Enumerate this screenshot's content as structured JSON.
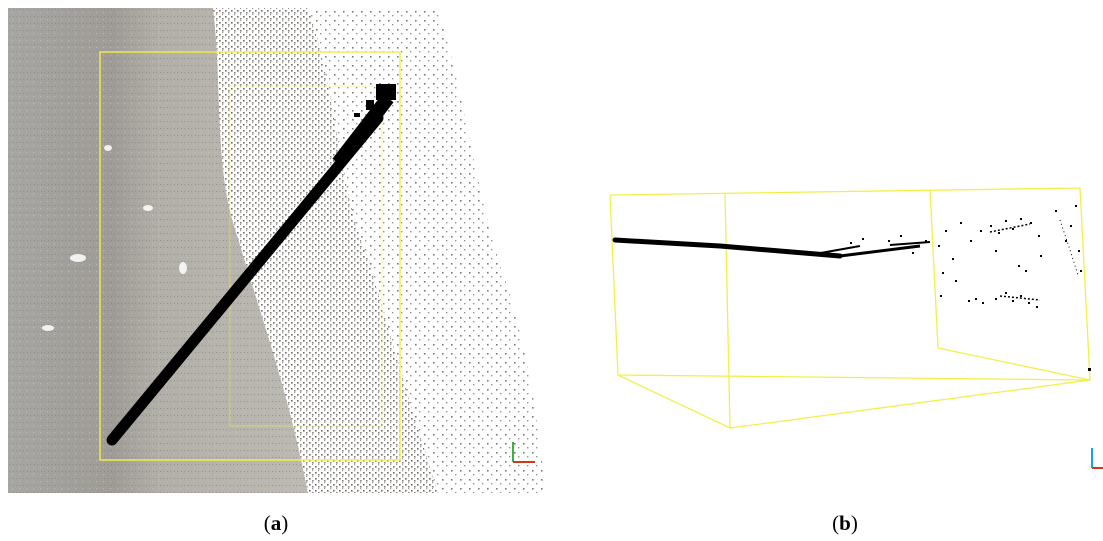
{
  "captions": {
    "a": {
      "open": "(",
      "letter": "a",
      "close": ")"
    },
    "b": {
      "open": "(",
      "letter": "b",
      "close": ")"
    }
  },
  "colors": {
    "bounding_box": "#f2ef4a",
    "line_points": "#000000",
    "sand_ground": "#a9a7a2",
    "sparse_points": "#6f6c68",
    "axis_x": "#d03a1a",
    "axis_y": "#3cb043",
    "axis_z": "#1aa0e6"
  },
  "icons": {
    "panel_a_axes": "xy-axis-triad-icon",
    "panel_b_axes": "xz-axis-triad-icon"
  }
}
